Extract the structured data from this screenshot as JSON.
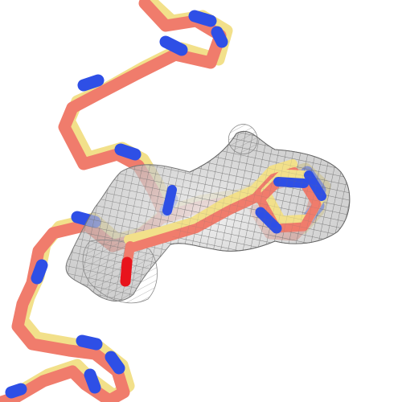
{
  "image": {
    "subject": "protein-backbone-with-electron-density-mesh",
    "colors": {
      "background": "#ffffff",
      "model_a_carbon": "#f2e08a",
      "model_b_carbon": "#f07c6c",
      "nitrogen": "#2e4fe6",
      "oxygen": "#e8141c",
      "density_mesh": "#7a7a7a",
      "density_surface": "#c8c8c8"
    }
  }
}
